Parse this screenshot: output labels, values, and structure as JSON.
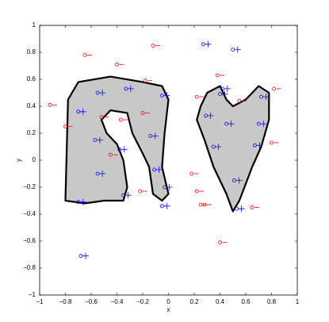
{
  "chart_data": {
    "type": "scatter",
    "xlabel": "x",
    "ylabel": "y",
    "xlim": [
      -1,
      1
    ],
    "ylim": [
      -1,
      1
    ],
    "xticks": [
      {
        "value": -1,
        "label": "−1"
      },
      {
        "value": -0.8,
        "label": "−0.8"
      },
      {
        "value": -0.6,
        "label": "−0.6"
      },
      {
        "value": -0.4,
        "label": "−0.4"
      },
      {
        "value": -0.2,
        "label": "−0.2"
      },
      0,
      0.2,
      0.4,
      0.6,
      0.8,
      1
    ],
    "yticks": [
      {
        "value": -1,
        "label": "−1"
      },
      {
        "value": -0.8,
        "label": "−0.8"
      },
      {
        "value": -0.6,
        "label": "−0.6"
      },
      {
        "value": -0.4,
        "label": "−0.4"
      },
      {
        "value": -0.2,
        "label": "−0.2"
      },
      0,
      0.2,
      0.4,
      0.6,
      0.8,
      1
    ],
    "series": [
      {
        "color": "#ff0000",
        "marker": "circle-dash",
        "x": [
          -0.65,
          -0.4,
          -0.12,
          0.38,
          -0.18,
          -0.92,
          -0.8,
          -0.52,
          -0.37,
          0.22,
          0.55,
          0.82,
          0.8,
          -0.45,
          0.18,
          0.22,
          0.28,
          0.25,
          0.65,
          0.4,
          -0.22,
          -0.2
        ],
        "values": [
          0.78,
          0.71,
          0.85,
          0.63,
          0.59,
          0.41,
          0.25,
          0.32,
          0.3,
          0.47,
          0.44,
          0.53,
          0.13,
          0.04,
          -0.1,
          -0.23,
          -0.33,
          -0.33,
          -0.35,
          -0.61,
          -0.23,
          0.35
        ]
      },
      {
        "color": "#0000ff",
        "marker": "circle-plus",
        "x": [
          -0.7,
          -0.55,
          -0.33,
          -0.05,
          -0.57,
          -0.14,
          -0.55,
          -0.11,
          -0.35,
          -0.7,
          -0.03,
          -0.05,
          -0.68,
          0.27,
          0.5,
          0.4,
          0.42,
          0.29,
          0.45,
          0.35,
          0.72,
          0.7,
          0.67,
          0.51,
          0.53,
          -0.38
        ],
        "values": [
          0.36,
          0.5,
          0.53,
          0.48,
          0.15,
          0.18,
          -0.1,
          -0.07,
          -0.26,
          -0.31,
          -0.2,
          -0.34,
          -0.71,
          0.86,
          0.82,
          0.49,
          0.53,
          0.33,
          0.27,
          0.1,
          0.47,
          0.27,
          0.11,
          -0.15,
          -0.36,
          0.08
        ]
      }
    ]
  }
}
